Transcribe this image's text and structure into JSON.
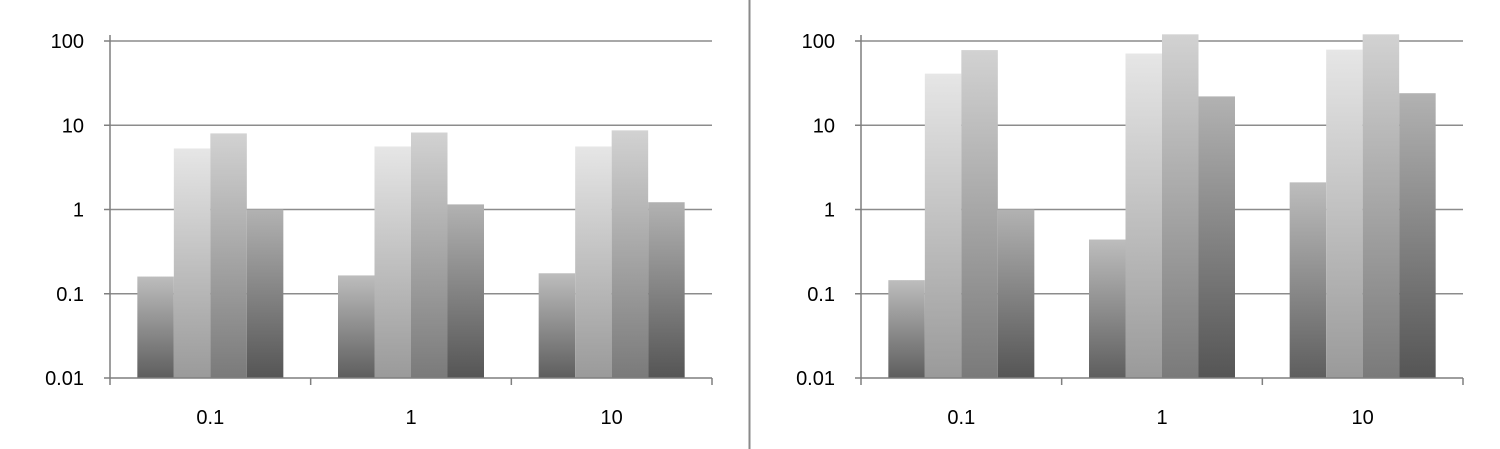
{
  "chart_data": [
    {
      "type": "bar",
      "title": "",
      "xlabel": "",
      "ylabel": "",
      "yscale": "log",
      "ylim": [
        0.01,
        100
      ],
      "yticks": [
        "0.01",
        "0.1",
        "1",
        "10",
        "100"
      ],
      "categories": [
        "0.1",
        "1",
        "10"
      ],
      "grid": "horizontal",
      "legend": "none",
      "series": [
        {
          "values": [
            0.16,
            0.165,
            0.175
          ]
        },
        {
          "values": [
            5.3,
            5.6,
            5.6
          ]
        },
        {
          "values": [
            8.0,
            8.2,
            8.7
          ]
        },
        {
          "values": [
            1.0,
            1.15,
            1.22
          ]
        }
      ]
    },
    {
      "type": "bar",
      "title": "",
      "xlabel": "",
      "ylabel": "",
      "yscale": "log",
      "ylim": [
        0.01,
        100
      ],
      "yticks": [
        "0.01",
        "0.1",
        "1",
        "10",
        "100"
      ],
      "categories": [
        "0.1",
        "1",
        "10"
      ],
      "grid": "horizontal",
      "legend": "none",
      "series": [
        {
          "values": [
            0.145,
            0.44,
            2.1
          ]
        },
        {
          "values": [
            41,
            71,
            79
          ]
        },
        {
          "values": [
            78,
            120,
            120
          ]
        },
        {
          "values": [
            1.0,
            22,
            24
          ]
        }
      ]
    }
  ],
  "style": {
    "axis_color": "#7f7f7f",
    "grid_color": "#8c8c8c",
    "divider_color": "#8a8a8a",
    "series_gradients": [
      [
        "#bdbdbd",
        "#5e5e5e"
      ],
      [
        "#e6e6e6",
        "#9a9a9a"
      ],
      [
        "#d2d2d2",
        "#7a7a7a"
      ],
      [
        "#b2b2b2",
        "#555555"
      ]
    ]
  }
}
